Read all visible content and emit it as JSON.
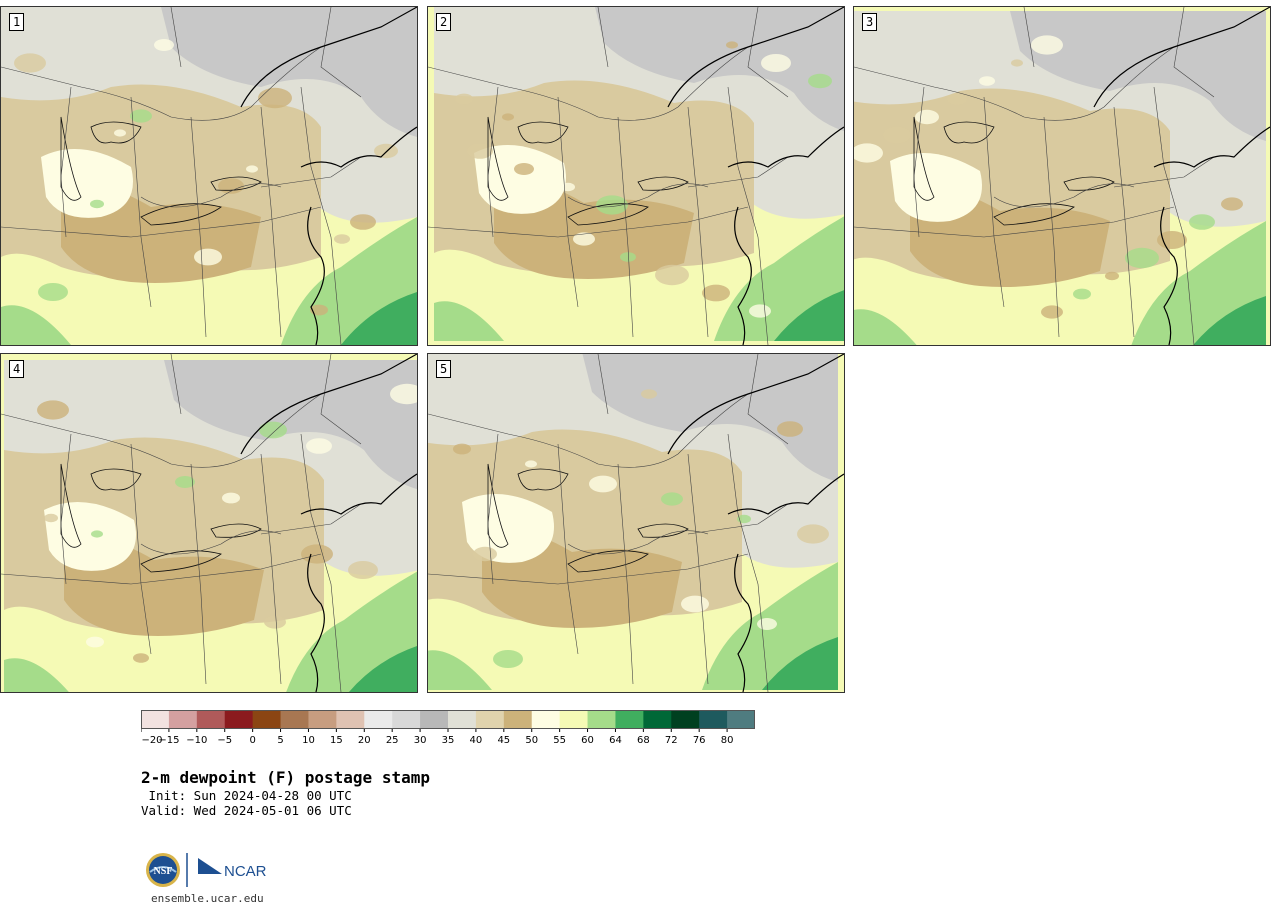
{
  "colors": {
    "scale": [
      "#f2e2e0",
      "#d4a0a0",
      "#b05a5a",
      "#8b1a1e",
      "#8b4513",
      "#a87752",
      "#c79d80",
      "#dfc2b2",
      "#eaeaea",
      "#d8d8d8",
      "#b8b8b8",
      "#e0e0d6",
      "#e0d3ad",
      "#ccb27a",
      "#fefde3",
      "#f5fab5",
      "#a5dc8a",
      "#40ae5f",
      "#006837",
      "#004020",
      "#1e5a5e",
      "#4f7c80"
    ],
    "land_tan": "#d9ca9f",
    "water_gray": "#c8c8c8",
    "borders": "#000000"
  },
  "panels": [
    {
      "label": "1",
      "variant": 0
    },
    {
      "label": "2",
      "variant": 1
    },
    {
      "label": "3",
      "variant": 2
    },
    {
      "label": "4",
      "variant": 3
    },
    {
      "label": "5",
      "variant": 4
    }
  ],
  "colorbar": {
    "ticks": [
      "−20",
      "−15",
      "−10",
      "−5",
      "0",
      "5",
      "10",
      "15",
      "20",
      "25",
      "30",
      "35",
      "40",
      "45",
      "50",
      "55",
      "60",
      "64",
      "68",
      "72",
      "76",
      "80"
    ]
  },
  "title": "2-m dewpoint (F) postage stamp",
  "init": " Init: Sun 2024-04-28 00 UTC",
  "valid": "Valid: Wed 2024-05-01 06 UTC",
  "logos": {
    "nsf": "NSF",
    "ncar": "NCAR"
  },
  "site": "ensemble.ucar.edu"
}
